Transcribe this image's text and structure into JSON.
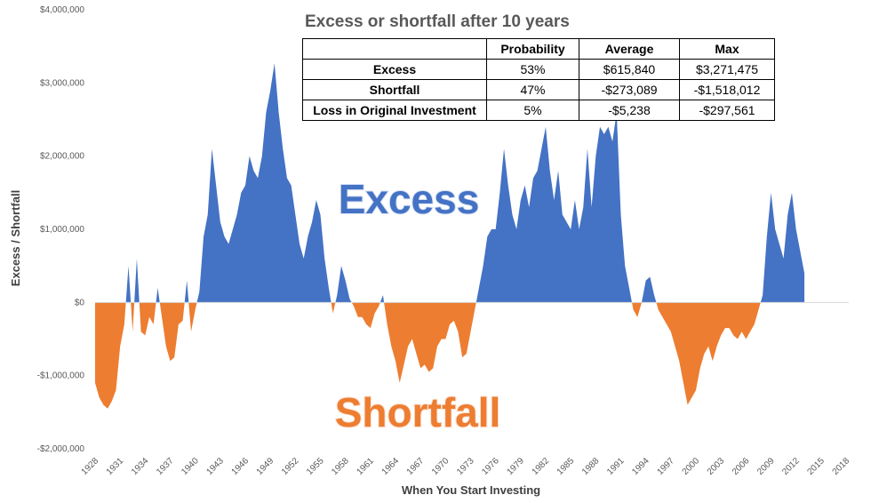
{
  "chart_data": {
    "type": "area",
    "x_label": "When You Start Investing",
    "y_label": "Excess / Shortfall",
    "color": "#4472c4",
    "negative_color": "#ed7d31",
    "annotations": [
      "Excess",
      "Shortfall"
    ],
    "xlim": [
      1928,
      2018
    ],
    "xticks": [
      1928,
      1931,
      1934,
      1937,
      1940,
      1943,
      1946,
      1949,
      1952,
      1955,
      1958,
      1961,
      1964,
      1967,
      1970,
      1973,
      1976,
      1979,
      1982,
      1985,
      1988,
      1991,
      1994,
      1997,
      2000,
      2003,
      2006,
      2009,
      2012,
      2015,
      2018
    ],
    "ylim": [
      -2000000,
      4000000
    ],
    "yticks": [
      {
        "value": -2000000,
        "label": "-$2,000,000"
      },
      {
        "value": -1000000,
        "label": "-$1,000,000"
      },
      {
        "value": 0,
        "label": "$0"
      },
      {
        "value": 1000000,
        "label": "$1,000,000"
      },
      {
        "value": 2000000,
        "label": "$2,000,000"
      },
      {
        "value": 3000000,
        "label": "$3,000,000"
      },
      {
        "value": 4000000,
        "label": "$4,000,000"
      }
    ],
    "x": [
      1928,
      1928.5,
      1929,
      1929.5,
      1930,
      1930.5,
      1931,
      1931.5,
      1932,
      1932.5,
      1933,
      1933.5,
      1934,
      1934.5,
      1935,
      1935.5,
      1936,
      1936.5,
      1937,
      1937.5,
      1938,
      1938.5,
      1939,
      1939.5,
      1940,
      1940.5,
      1941,
      1941.5,
      1942,
      1942.5,
      1943,
      1943.5,
      1944,
      1944.5,
      1945,
      1945.5,
      1946,
      1946.5,
      1947,
      1947.5,
      1948,
      1948.5,
      1949,
      1949.5,
      1950,
      1950.5,
      1951,
      1951.5,
      1952,
      1952.5,
      1953,
      1953.5,
      1954,
      1954.5,
      1955,
      1955.5,
      1956,
      1956.5,
      1957,
      1957.5,
      1958,
      1958.5,
      1959,
      1959.5,
      1960,
      1960.5,
      1961,
      1961.5,
      1962,
      1962.5,
      1963,
      1963.5,
      1964,
      1964.5,
      1965,
      1965.5,
      1966,
      1966.5,
      1967,
      1967.5,
      1968,
      1968.5,
      1969,
      1969.5,
      1970,
      1970.5,
      1971,
      1971.5,
      1972,
      1972.5,
      1973,
      1973.5,
      1974,
      1974.5,
      1975,
      1975.5,
      1976,
      1976.5,
      1977,
      1977.5,
      1978,
      1978.5,
      1979,
      1979.5,
      1980,
      1980.5,
      1981,
      1981.5,
      1982,
      1982.5,
      1983,
      1983.5,
      1984,
      1984.5,
      1985,
      1985.5,
      1986,
      1986.5,
      1987,
      1987.5,
      1988,
      1988.5,
      1989,
      1989.5,
      1990,
      1990.5,
      1991,
      1991.5,
      1992,
      1992.5,
      1993,
      1993.5,
      1994,
      1994.5,
      1995,
      1995.5,
      1996,
      1996.5,
      1997,
      1997.5,
      1998,
      1998.5,
      1999,
      1999.5,
      2000,
      2000.5,
      2001,
      2001.5,
      2002,
      2002.5,
      2003,
      2003.5,
      2004,
      2004.5,
      2005,
      2005.5,
      2006,
      2006.5,
      2007,
      2007.5,
      2008,
      2008.5,
      2009,
      2009.5,
      2010,
      2010.5,
      2011,
      2011.5,
      2012,
      2012.5,
      2013
    ],
    "values": [
      -1100000,
      -1300000,
      -1400000,
      -1450000,
      -1350000,
      -1200000,
      -600000,
      -300000,
      500000,
      -400000,
      600000,
      -400000,
      -450000,
      -200000,
      -300000,
      200000,
      -200000,
      -600000,
      -800000,
      -750000,
      -300000,
      -250000,
      300000,
      -400000,
      -100000,
      150000,
      900000,
      1200000,
      2100000,
      1600000,
      1100000,
      900000,
      800000,
      1000000,
      1200000,
      1500000,
      1600000,
      2000000,
      1800000,
      1700000,
      2000000,
      2600000,
      2900000,
      3270000,
      2600000,
      2100000,
      1700000,
      1600000,
      1200000,
      800000,
      600000,
      900000,
      1100000,
      1400000,
      1200000,
      600000,
      200000,
      -150000,
      100000,
      500000,
      300000,
      50000,
      -50000,
      -200000,
      -200000,
      -300000,
      -350000,
      -150000,
      -50000,
      100000,
      -300000,
      -600000,
      -800000,
      -1100000,
      -850000,
      -600000,
      -500000,
      -700000,
      -900000,
      -850000,
      -950000,
      -900000,
      -600000,
      -500000,
      -500000,
      -300000,
      -250000,
      -400000,
      -750000,
      -700000,
      -400000,
      -100000,
      200000,
      500000,
      900000,
      1000000,
      1000000,
      1500000,
      2100000,
      1600000,
      1200000,
      1000000,
      1400000,
      1600000,
      1300000,
      1700000,
      1800000,
      2100000,
      2400000,
      1800000,
      1400000,
      1800000,
      1200000,
      1100000,
      1000000,
      1400000,
      1000000,
      1300000,
      2100000,
      1300000,
      2000000,
      2400000,
      2300000,
      2400000,
      2200000,
      2600000,
      1200000,
      500000,
      200000,
      -100000,
      -200000,
      0,
      300000,
      350000,
      100000,
      -100000,
      -200000,
      -300000,
      -400000,
      -600000,
      -800000,
      -1100000,
      -1400000,
      -1300000,
      -1200000,
      -900000,
      -700000,
      -600000,
      -800000,
      -600000,
      -450000,
      -350000,
      -350000,
      -450000,
      -500000,
      -400000,
      -500000,
      -400000,
      -300000,
      -100000,
      100000,
      900000,
      1500000,
      1000000,
      800000,
      600000,
      1200000,
      1500000,
      1000000,
      700000,
      400000
    ]
  },
  "table": {
    "title": "Excess or shortfall after 10 years",
    "columns": [
      "Probability",
      "Average",
      "Max"
    ],
    "rows": [
      [
        "Excess",
        "53%",
        "$615,840",
        "$3,271,475"
      ],
      [
        "Shortfall",
        "47%",
        "-$273,089",
        "-$1,518,012"
      ],
      [
        "Loss in Original Investment",
        "5%",
        "-$5,238",
        "-$297,561"
      ]
    ]
  }
}
